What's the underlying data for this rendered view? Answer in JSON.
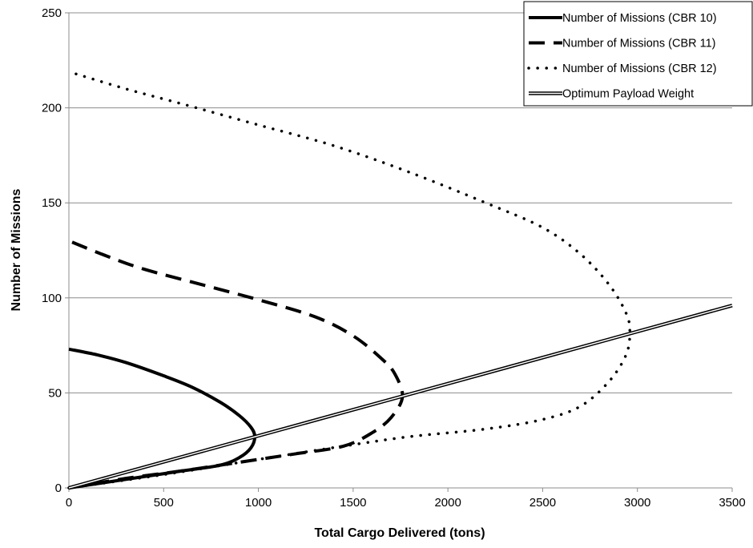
{
  "chart_data": {
    "type": "line",
    "title": "",
    "xlabel": "Total Cargo Delivered (tons)",
    "ylabel": "Number of Missions",
    "xlim": [
      0,
      3500
    ],
    "ylim": [
      0,
      250
    ],
    "xticks": [
      0,
      500,
      1000,
      1500,
      2000,
      2500,
      3000,
      3500
    ],
    "yticks": [
      0,
      50,
      100,
      150,
      200,
      250
    ],
    "grid": "horizontal",
    "legend_position": "top-right",
    "series": [
      {
        "name": "Number of Missions (CBR 10)",
        "style": "solid",
        "color": "#000000",
        "points": [
          [
            0,
            0
          ],
          [
            200,
            3
          ],
          [
            400,
            6
          ],
          [
            600,
            9
          ],
          [
            800,
            12
          ],
          [
            900,
            16
          ],
          [
            960,
            21
          ],
          [
            981,
            27
          ],
          [
            960,
            32
          ],
          [
            900,
            38
          ],
          [
            800,
            45
          ],
          [
            650,
            53
          ],
          [
            500,
            59
          ],
          [
            300,
            66
          ],
          [
            150,
            70
          ],
          [
            0,
            73
          ]
        ]
      },
      {
        "name": "Number of Missions (CBR 11)",
        "style": "dashed",
        "color": "#000000",
        "points": [
          [
            0,
            0
          ],
          [
            300,
            5
          ],
          [
            600,
            9
          ],
          [
            800,
            12
          ],
          [
            1000,
            15
          ],
          [
            1200,
            18
          ],
          [
            1450,
            22
          ],
          [
            1600,
            29
          ],
          [
            1700,
            37
          ],
          [
            1760,
            48
          ],
          [
            1720,
            60
          ],
          [
            1650,
            68
          ],
          [
            1500,
            80
          ],
          [
            1300,
            90
          ],
          [
            1000,
            99
          ],
          [
            700,
            107
          ],
          [
            400,
            115
          ],
          [
            200,
            122
          ],
          [
            0,
            130
          ]
        ]
      },
      {
        "name": "Number of Missions (CBR 12)",
        "style": "dotted",
        "color": "#000000",
        "points": [
          [
            0,
            0
          ],
          [
            500,
            7
          ],
          [
            1000,
            15
          ],
          [
            1450,
            22
          ],
          [
            1800,
            27
          ],
          [
            2200,
            31
          ],
          [
            2500,
            36
          ],
          [
            2700,
            43
          ],
          [
            2850,
            56
          ],
          [
            2940,
            70
          ],
          [
            2960,
            82
          ],
          [
            2940,
            92
          ],
          [
            2850,
            107
          ],
          [
            2700,
            123
          ],
          [
            2500,
            137
          ],
          [
            2200,
            150
          ],
          [
            1800,
            166
          ],
          [
            1400,
            180
          ],
          [
            1000,
            191
          ],
          [
            600,
            202
          ],
          [
            300,
            210
          ],
          [
            0,
            219
          ]
        ]
      },
      {
        "name": "Optimum Payload Weight",
        "style": "double",
        "color": "#000000",
        "points": [
          [
            0,
            0
          ],
          [
            3500,
            96
          ]
        ]
      }
    ]
  }
}
